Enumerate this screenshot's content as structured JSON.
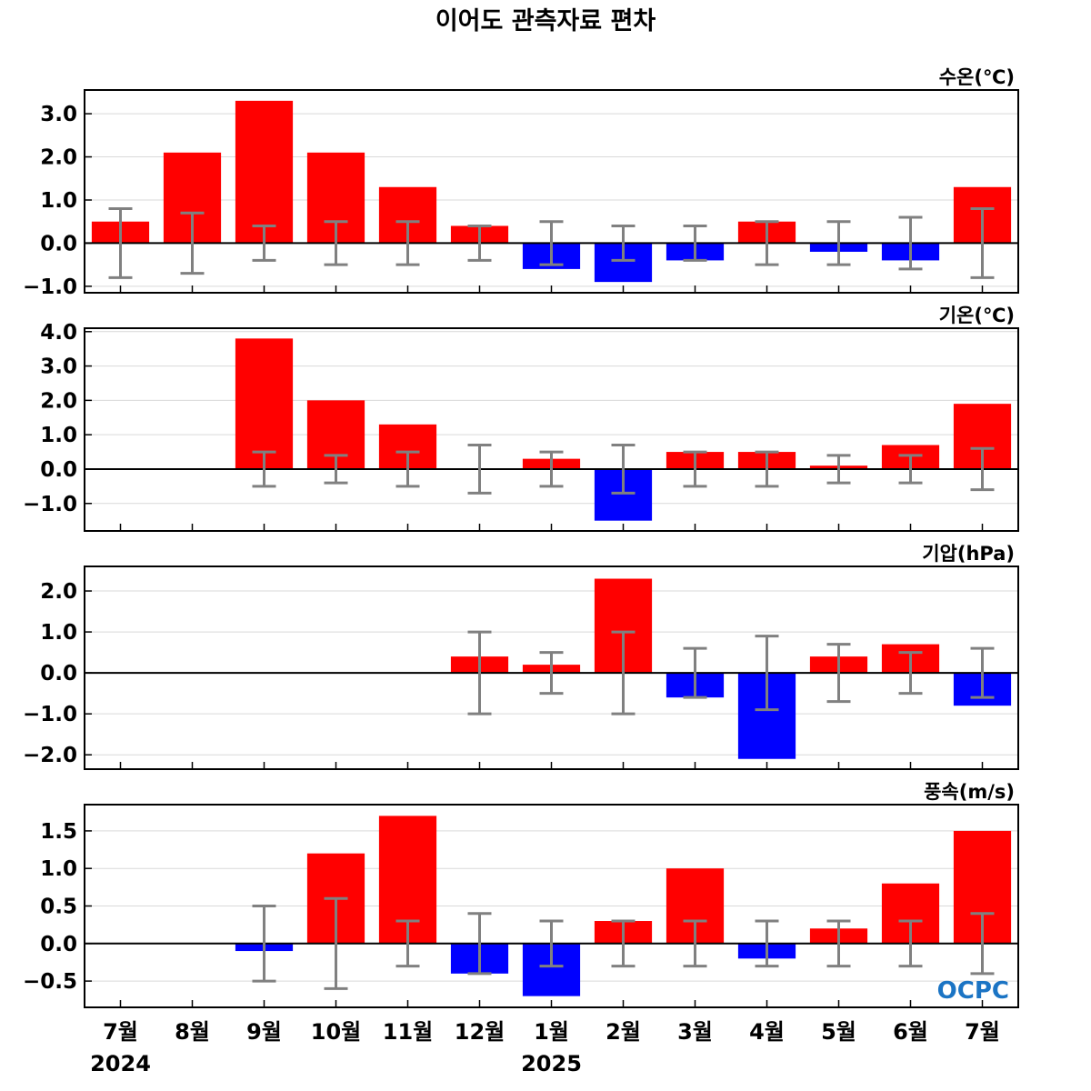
{
  "title": "이어도 관측자료 편차",
  "months": [
    "7월",
    "8월",
    "9월",
    "10월",
    "11월",
    "12월",
    "1월",
    "2월",
    "3월",
    "4월",
    "5월",
    "6월",
    "7월"
  ],
  "years": [
    {
      "label": "2024",
      "month_index": 0
    },
    {
      "label": "2025",
      "month_index": 6
    }
  ],
  "colors": {
    "positive": "#ff0000",
    "negative": "#0000ff",
    "error_bar": "#808080",
    "grid": "#d9d9d9",
    "zero_line": "#000000",
    "logo": "#1b74c4"
  },
  "logo": "OCPC",
  "chart_data": [
    {
      "type": "bar",
      "unit_label": "수온(℃)",
      "categories": [
        "7월",
        "8월",
        "9월",
        "10월",
        "11월",
        "12월",
        "1월",
        "2월",
        "3월",
        "4월",
        "5월",
        "6월",
        "7월"
      ],
      "values": [
        0.5,
        2.1,
        3.3,
        2.1,
        1.3,
        0.4,
        -0.6,
        -0.9,
        -0.4,
        0.5,
        -0.2,
        -0.4,
        1.3
      ],
      "error_low": [
        -0.8,
        -0.7,
        -0.4,
        -0.5,
        -0.5,
        -0.4,
        -0.5,
        -0.4,
        -0.4,
        -0.5,
        -0.5,
        -0.6,
        -0.8
      ],
      "error_high": [
        0.8,
        0.7,
        0.4,
        0.5,
        0.5,
        0.4,
        0.5,
        0.4,
        0.4,
        0.5,
        0.5,
        0.6,
        0.8
      ],
      "ylim": [
        -1.15,
        3.55
      ],
      "yticks": [
        -1.0,
        0.0,
        1.0,
        2.0,
        3.0
      ],
      "ytick_labels": [
        "−1.0",
        "0.0",
        "1.0",
        "2.0",
        "3.0"
      ],
      "grid": true
    },
    {
      "type": "bar",
      "unit_label": "기온(℃)",
      "categories": [
        "7월",
        "8월",
        "9월",
        "10월",
        "11월",
        "12월",
        "1월",
        "2월",
        "3월",
        "4월",
        "5월",
        "6월",
        "7월"
      ],
      "values": [
        null,
        null,
        3.8,
        2.0,
        1.3,
        0.0,
        0.3,
        -1.5,
        0.5,
        0.5,
        0.1,
        0.7,
        1.9
      ],
      "error_low": [
        null,
        null,
        -0.5,
        -0.4,
        -0.5,
        -0.7,
        -0.5,
        -0.7,
        -0.5,
        -0.5,
        -0.4,
        -0.4,
        -0.6
      ],
      "error_high": [
        null,
        null,
        0.5,
        0.4,
        0.5,
        0.7,
        0.5,
        0.7,
        0.5,
        0.5,
        0.4,
        0.4,
        0.6
      ],
      "ylim": [
        -1.8,
        4.1
      ],
      "yticks": [
        -1.0,
        0.0,
        1.0,
        2.0,
        3.0,
        4.0
      ],
      "ytick_labels": [
        "−1.0",
        "0.0",
        "1.0",
        "2.0",
        "3.0",
        "4.0"
      ],
      "grid": true
    },
    {
      "type": "bar",
      "unit_label": "기압(hPa)",
      "categories": [
        "7월",
        "8월",
        "9월",
        "10월",
        "11월",
        "12월",
        "1월",
        "2월",
        "3월",
        "4월",
        "5월",
        "6월",
        "7월"
      ],
      "values": [
        null,
        null,
        null,
        null,
        null,
        0.4,
        0.2,
        2.3,
        -0.6,
        -2.1,
        0.4,
        0.7,
        -0.8
      ],
      "error_low": [
        null,
        null,
        null,
        null,
        null,
        -1.0,
        -0.5,
        -1.0,
        -0.6,
        -0.9,
        -0.7,
        -0.5,
        -0.6
      ],
      "error_high": [
        null,
        null,
        null,
        null,
        null,
        1.0,
        0.5,
        1.0,
        0.6,
        0.9,
        0.7,
        0.5,
        0.6
      ],
      "ylim": [
        -2.35,
        2.6
      ],
      "yticks": [
        -2.0,
        -1.0,
        0.0,
        1.0,
        2.0
      ],
      "ytick_labels": [
        "−2.0",
        "−1.0",
        "0.0",
        "1.0",
        "2.0"
      ],
      "grid": true
    },
    {
      "type": "bar",
      "unit_label": "풍속(m/s)",
      "categories": [
        "7월",
        "8월",
        "9월",
        "10월",
        "11월",
        "12월",
        "1월",
        "2월",
        "3월",
        "4월",
        "5월",
        "6월",
        "7월"
      ],
      "values": [
        null,
        null,
        -0.1,
        1.2,
        1.7,
        -0.4,
        -0.7,
        0.3,
        1.0,
        -0.2,
        0.2,
        0.8,
        1.5
      ],
      "error_low": [
        null,
        null,
        -0.5,
        -0.6,
        -0.3,
        -0.4,
        -0.3,
        -0.3,
        -0.3,
        -0.3,
        -0.3,
        -0.3,
        -0.4
      ],
      "error_high": [
        null,
        null,
        0.5,
        0.6,
        0.3,
        0.4,
        0.3,
        0.3,
        0.3,
        0.3,
        0.3,
        0.3,
        0.4
      ],
      "ylim": [
        -0.85,
        1.85
      ],
      "yticks": [
        -0.5,
        0.0,
        0.5,
        1.0,
        1.5
      ],
      "ytick_labels": [
        "−0.5",
        "0.0",
        "0.5",
        "1.0",
        "1.5"
      ],
      "grid": true
    }
  ]
}
